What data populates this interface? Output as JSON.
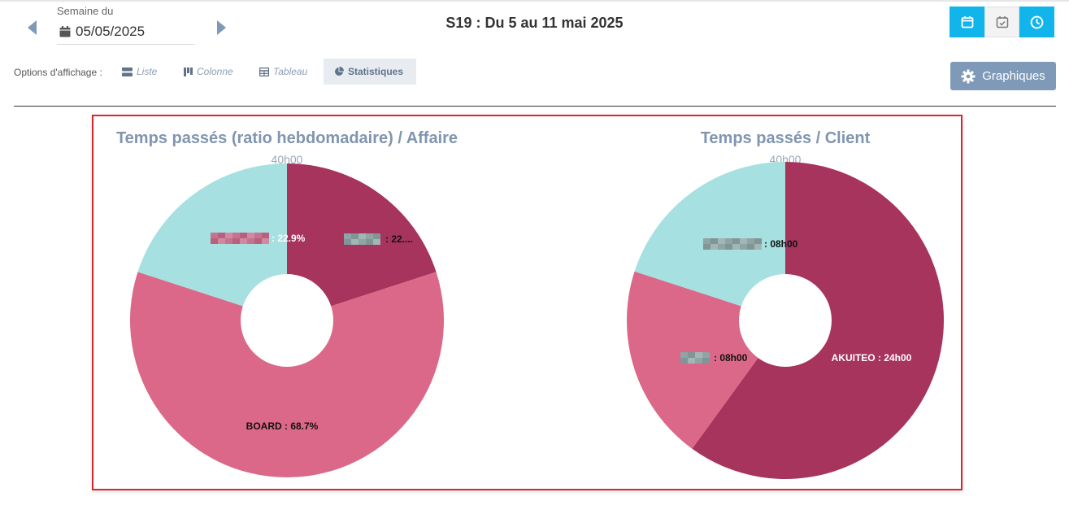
{
  "week_nav": {
    "label": "Semaine du",
    "date_value": "05/05/2025",
    "title": "S19 : Du 5 au 11 mai 2025"
  },
  "view_modes": [
    {
      "name": "month-view-button",
      "icon": "calendar-icon",
      "active": true
    },
    {
      "name": "week-view-button",
      "icon": "calendar-check-icon",
      "active": false
    },
    {
      "name": "time-view-button",
      "icon": "clock-icon",
      "active": true
    }
  ],
  "display_options": {
    "label": "Options d'affichage :",
    "items": [
      {
        "label": "Liste",
        "icon": "list-icon",
        "selected": false
      },
      {
        "label": "Colonne",
        "icon": "columns-icon",
        "selected": false
      },
      {
        "label": "Tableau",
        "icon": "table-icon",
        "selected": false
      },
      {
        "label": "Statistiques",
        "icon": "pie-chart-icon",
        "selected": true
      }
    ]
  },
  "graph_button": {
    "label": "Graphiques",
    "icon": "gear-icon"
  },
  "colors": {
    "accent": "#11b5ec",
    "dark": "#a6345d",
    "mid": "#db6889",
    "light": "#a6e0e1"
  },
  "chart_data": [
    {
      "type": "pie",
      "title": "Temps passés (ratio hebdomadaire) / Affaire",
      "total_label": "40h00",
      "slices": [
        {
          "label": ": 22.9%",
          "value": 22.9,
          "color": "#a6345d",
          "redacted": true
        },
        {
          "label": "BOARD : 68.7%",
          "value": 68.7,
          "color": "#db6889",
          "redacted": false
        },
        {
          "label": ": 22....",
          "value": 22.9,
          "color": "#a6e0e1",
          "redacted": true
        }
      ]
    },
    {
      "type": "pie",
      "title": "Temps passés / Client",
      "total_label": "40h00",
      "slices": [
        {
          "label": "AKUITEO : 24h00",
          "value": 24,
          "color": "#a6345d",
          "redacted": false
        },
        {
          "label": ": 08h00",
          "value": 8,
          "color": "#db6889",
          "redacted": true
        },
        {
          "label": ": 08h00",
          "value": 8,
          "color": "#a6e0e1",
          "redacted": true
        }
      ]
    }
  ]
}
